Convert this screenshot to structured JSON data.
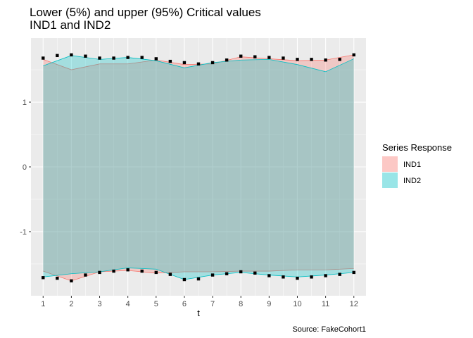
{
  "chart_data": {
    "type": "area",
    "title": "Lower (5%) and upper (95%) Critical values",
    "subtitle": "IND1 and IND2",
    "xlabel": "t",
    "ylabel": "",
    "caption": "Source: FakeCohort1",
    "xlim": [
      0.57,
      12.43
    ],
    "ylim": [
      -1.99,
      1.99
    ],
    "x_ticks": [
      1,
      2,
      3,
      4,
      5,
      6,
      7,
      8,
      9,
      10,
      11,
      12
    ],
    "y_ticks": [
      -1,
      0,
      1
    ],
    "legend": {
      "title": "Series Response",
      "position": "right"
    },
    "colors": {
      "IND1": "#F8766D",
      "IND2": "#00BFC4",
      "panel": "#EBEBEB",
      "grid": "#FFFFFF",
      "points": "#000000"
    },
    "x": [
      1,
      2,
      3,
      4,
      5,
      6,
      7,
      8,
      9,
      10,
      11,
      12
    ],
    "series": [
      {
        "name": "IND1",
        "upper": [
          1.66,
          1.5,
          1.59,
          1.59,
          1.65,
          1.58,
          1.59,
          1.7,
          1.67,
          1.64,
          1.65,
          1.73
        ],
        "lower": [
          -1.61,
          -1.76,
          -1.62,
          -1.6,
          -1.64,
          -1.62,
          -1.62,
          -1.61,
          -1.61,
          -1.59,
          -1.59,
          -1.57
        ]
      },
      {
        "name": "IND2",
        "upper": [
          1.56,
          1.72,
          1.66,
          1.69,
          1.64,
          1.53,
          1.61,
          1.65,
          1.66,
          1.58,
          1.47,
          1.67
        ],
        "lower": [
          -1.7,
          -1.65,
          -1.62,
          -1.56,
          -1.58,
          -1.74,
          -1.67,
          -1.63,
          -1.67,
          -1.7,
          -1.67,
          -1.63
        ]
      }
    ],
    "points": {
      "x": [
        1,
        1.5,
        2,
        2.5,
        3,
        3.5,
        4,
        4.5,
        5,
        5.5,
        6,
        6.5,
        7,
        7.5,
        8,
        8.5,
        9,
        9.5,
        10,
        10.5,
        11,
        11.5,
        12
      ],
      "upper": [
        1.68,
        1.72,
        1.73,
        1.71,
        1.68,
        1.68,
        1.69,
        1.69,
        1.67,
        1.63,
        1.61,
        1.59,
        1.61,
        1.65,
        1.71,
        1.7,
        1.69,
        1.68,
        1.66,
        1.66,
        1.65,
        1.66,
        1.73
      ],
      "lower": [
        -1.71,
        -1.72,
        -1.76,
        -1.67,
        -1.63,
        -1.61,
        -1.59,
        -1.61,
        -1.63,
        -1.66,
        -1.74,
        -1.73,
        -1.67,
        -1.65,
        -1.62,
        -1.64,
        -1.68,
        -1.7,
        -1.72,
        -1.7,
        -1.68,
        -1.66,
        -1.63
      ]
    }
  }
}
